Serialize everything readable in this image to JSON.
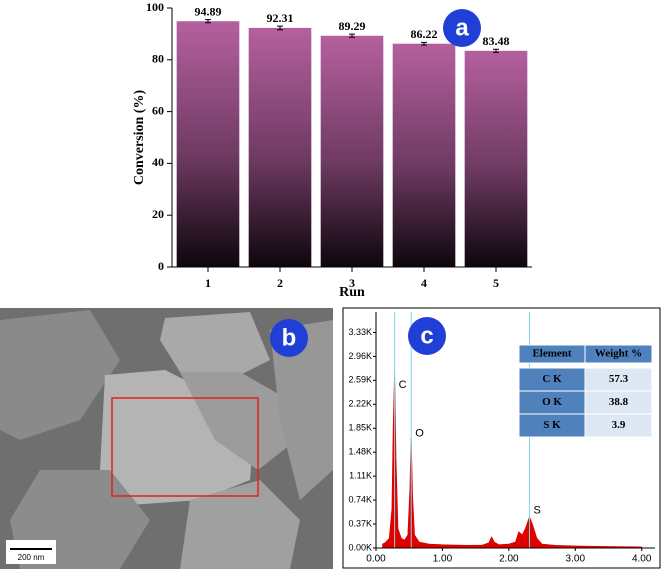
{
  "chart_data": [
    {
      "type": "bar",
      "y_label": "Conversion (%)",
      "x_label": "Run",
      "categories": [
        "1",
        "2",
        "3",
        "4",
        "5"
      ],
      "values": [
        94.89,
        92.31,
        89.29,
        86.22,
        83.48
      ],
      "errors": [
        0.6,
        0.7,
        0.6,
        0.5,
        0.6
      ],
      "color": "#b5609f",
      "ylim": [
        0,
        100
      ],
      "yticks": [
        0,
        20,
        40,
        60,
        80,
        100
      ]
    },
    {
      "type": "area",
      "color": "#e00000",
      "x": [
        0.1,
        0.15,
        0.2,
        0.24,
        0.26,
        0.28,
        0.3,
        0.33,
        0.38,
        0.43,
        0.48,
        0.51,
        0.53,
        0.55,
        0.58,
        0.65,
        0.8,
        1.0,
        1.2,
        1.4,
        1.6,
        1.7,
        1.74,
        1.78,
        1.85,
        2.0,
        2.1,
        2.15,
        2.2,
        2.25,
        2.31,
        2.36,
        2.42,
        2.5,
        2.7,
        3.0,
        3.3,
        3.6,
        4.0
      ],
      "values": [
        60,
        90,
        150,
        600,
        1900,
        2700,
        1400,
        300,
        150,
        120,
        200,
        900,
        1700,
        800,
        200,
        90,
        60,
        50,
        45,
        40,
        45,
        80,
        170,
        90,
        50,
        60,
        90,
        250,
        200,
        300,
        480,
        350,
        150,
        60,
        40,
        30,
        25,
        20,
        15
      ],
      "annotations": [
        {
          "text": "C",
          "x": 0.28,
          "y": 2520
        },
        {
          "text": "O",
          "x": 0.53,
          "y": 1770
        },
        {
          "text": "S",
          "x": 2.31,
          "y": 580
        }
      ],
      "xlim": [
        0,
        4.2
      ],
      "ylim": [
        0,
        3600
      ],
      "xticks": [
        {
          "value": 0,
          "label": "0.00"
        },
        {
          "value": 1,
          "label": "1.00"
        },
        {
          "value": 2,
          "label": "2.00"
        },
        {
          "value": 3,
          "label": "3.00"
        },
        {
          "value": 4,
          "label": "4.00"
        }
      ],
      "yticks": [
        {
          "value": 0,
          "label": "0.00K"
        },
        {
          "value": 370,
          "label": "0.37K"
        },
        {
          "value": 740,
          "label": "0.74K"
        },
        {
          "value": 1110,
          "label": "1.11K"
        },
        {
          "value": 1480,
          "label": "1.48K"
        },
        {
          "value": 1850,
          "label": "1.85K"
        },
        {
          "value": 2220,
          "label": "2.22K"
        },
        {
          "value": 2590,
          "label": "2.59K"
        },
        {
          "value": 2960,
          "label": "2.96K"
        },
        {
          "value": 3330,
          "label": "3.33K"
        }
      ]
    }
  ],
  "table": {
    "header": [
      "Element",
      "Weight %"
    ],
    "rows": [
      [
        "C K",
        "57.3"
      ],
      [
        "O K",
        "38.8"
      ],
      [
        "S K",
        "3.9"
      ]
    ]
  },
  "panel_labels": [
    "a",
    "b",
    "c"
  ],
  "scale_bar": "200 nm"
}
